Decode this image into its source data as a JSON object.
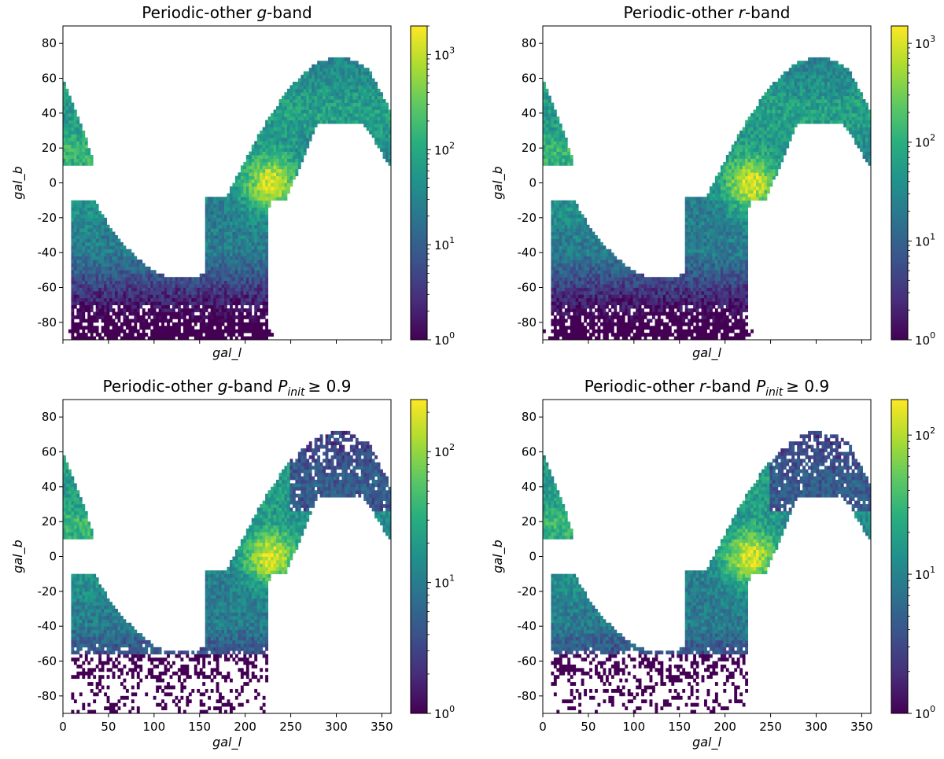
{
  "chart_data": [
    {
      "type": "heatmap",
      "title": "Periodic-other g-band",
      "title_parts": {
        "prefix": "Periodic-other ",
        "band": "g",
        "suffix": "-band",
        "condition": ""
      },
      "xlabel": "gal_l",
      "ylabel": "gal_b",
      "xlim": [
        0,
        360
      ],
      "ylim": [
        -90,
        90
      ],
      "xticks": [],
      "yticks": [
        80,
        60,
        40,
        20,
        0,
        -20,
        -40,
        -60,
        -80
      ],
      "colorbar": {
        "scale": "log",
        "colormap": "viridis",
        "max": 2000,
        "ticks": [
          {
            "base": "10",
            "exp": "0",
            "value": 1
          },
          {
            "base": "10",
            "exp": "1",
            "value": 10
          },
          {
            "base": "10",
            "exp": "2",
            "value": 100
          },
          {
            "base": "10",
            "exp": "3",
            "value": 1000
          }
        ]
      },
      "density_regions": [
        {
          "region": "galactic plane crossing near l=230, b=0",
          "peak_counts": 1000
        },
        {
          "region": "northern arc l=250-360, b=30-70",
          "peak_counts": 150
        },
        {
          "region": "southern arc l=10-220, b=-10 to -90",
          "peak_counts": 40
        },
        {
          "region": "small cap l=0-35, b=10-60",
          "peak_counts": 100
        }
      ]
    },
    {
      "type": "heatmap",
      "title": "Periodic-other r-band",
      "title_parts": {
        "prefix": "Periodic-other ",
        "band": "r",
        "suffix": "-band",
        "condition": ""
      },
      "xlabel": "gal_l",
      "ylabel": "gal_b",
      "xlim": [
        0,
        360
      ],
      "ylim": [
        -90,
        90
      ],
      "xticks": [],
      "yticks": [
        80,
        60,
        40,
        20,
        0,
        -20,
        -40,
        -60,
        -80
      ],
      "colorbar": {
        "scale": "log",
        "colormap": "viridis",
        "max": 1500,
        "ticks": [
          {
            "base": "10",
            "exp": "0",
            "value": 1
          },
          {
            "base": "10",
            "exp": "1",
            "value": 10
          },
          {
            "base": "10",
            "exp": "2",
            "value": 100
          },
          {
            "base": "10",
            "exp": "3",
            "value": 1000
          }
        ]
      },
      "density_regions": [
        {
          "region": "galactic plane crossing near l=220, b=0",
          "peak_counts": 1000
        },
        {
          "region": "northern arc l=250-360, b=30-70",
          "peak_counts": 150
        },
        {
          "region": "southern arc l=10-220, b=-10 to -90",
          "peak_counts": 60
        },
        {
          "region": "small cap l=0-35, b=10-60",
          "peak_counts": 150
        }
      ]
    },
    {
      "type": "heatmap",
      "title": "Periodic-other g-band P_init ≥ 0.9",
      "title_parts": {
        "prefix": "Periodic-other ",
        "band": "g",
        "suffix": "-band ",
        "condition": "≥ 0.9"
      },
      "xlabel": "gal_l",
      "ylabel": "gal_b",
      "xlim": [
        0,
        360
      ],
      "ylim": [
        -90,
        90
      ],
      "xticks": [
        0,
        50,
        100,
        150,
        200,
        250,
        300,
        350
      ],
      "yticks": [
        80,
        60,
        40,
        20,
        0,
        -20,
        -40,
        -60,
        -80
      ],
      "colorbar": {
        "scale": "log",
        "colormap": "viridis",
        "max": 250,
        "ticks": [
          {
            "base": "10",
            "exp": "0",
            "value": 1
          },
          {
            "base": "10",
            "exp": "1",
            "value": 10
          },
          {
            "base": "10",
            "exp": "2",
            "value": 100
          }
        ]
      },
      "density_regions": [
        {
          "region": "galactic plane crossing near l=230, b=0",
          "peak_counts": 150
        },
        {
          "region": "northern arc l=250-360, b=30-70",
          "peak_counts": 15
        },
        {
          "region": "southern arc l=10-220, b=-10 to -90",
          "peak_counts": 30
        },
        {
          "region": "small cap l=0-35, b=10-60",
          "peak_counts": 30
        }
      ]
    },
    {
      "type": "heatmap",
      "title": "Periodic-other r-band P_init ≥ 0.9",
      "title_parts": {
        "prefix": "Periodic-other ",
        "band": "r",
        "suffix": "-band ",
        "condition": "≥ 0.9"
      },
      "xlabel": "gal_l",
      "ylabel": "gal_b",
      "xlim": [
        0,
        360
      ],
      "ylim": [
        -90,
        90
      ],
      "xticks": [
        0,
        50,
        100,
        150,
        200,
        250,
        300,
        350
      ],
      "yticks": [
        80,
        60,
        40,
        20,
        0,
        -20,
        -40,
        -60,
        -80
      ],
      "colorbar": {
        "scale": "log",
        "colormap": "viridis",
        "max": 180,
        "ticks": [
          {
            "base": "10",
            "exp": "0",
            "value": 1
          },
          {
            "base": "10",
            "exp": "1",
            "value": 10
          },
          {
            "base": "10",
            "exp": "2",
            "value": 100
          }
        ]
      },
      "density_regions": [
        {
          "region": "galactic plane crossing near l=215, b=0",
          "peak_counts": 120
        },
        {
          "region": "northern arc l=250-360, b=30-70",
          "peak_counts": 15
        },
        {
          "region": "southern arc l=10-220, b=-10 to -90",
          "peak_counts": 30
        },
        {
          "region": "small cap l=0-35, b=10-60",
          "peak_counts": 30
        }
      ]
    }
  ],
  "title_subscript": "init",
  "title_symbol": "P"
}
